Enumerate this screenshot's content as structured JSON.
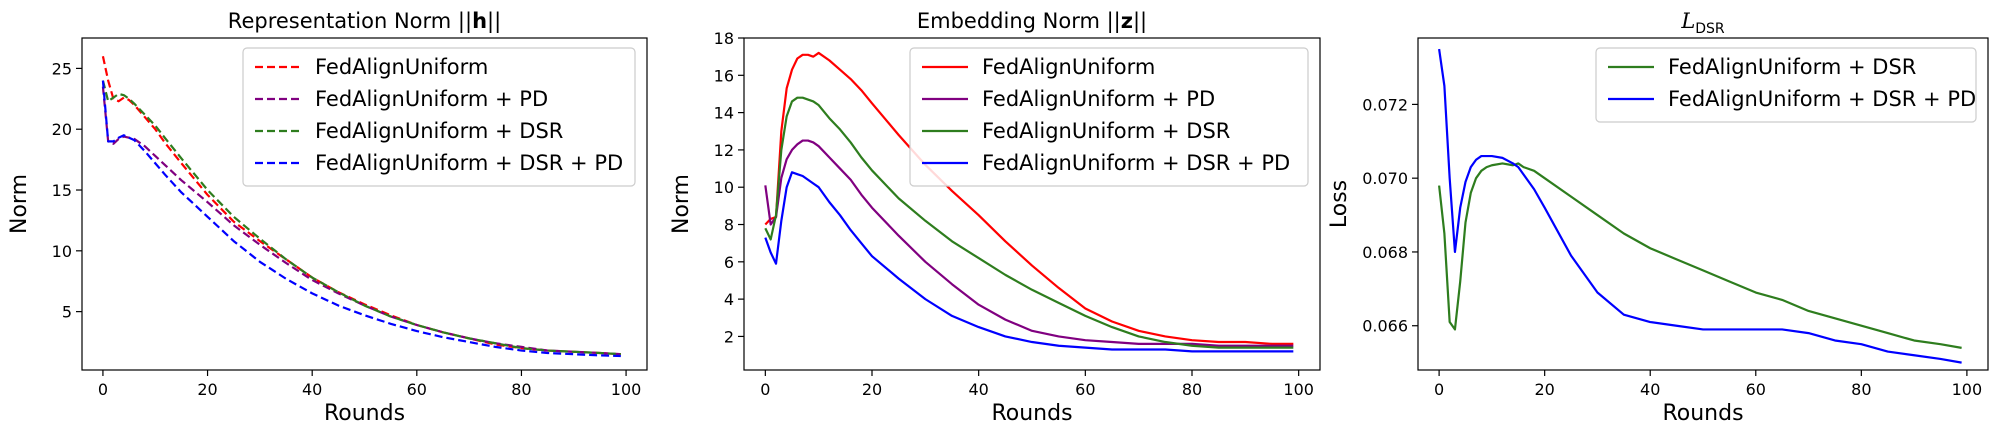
{
  "chart_data": [
    {
      "type": "line",
      "title": "Representation Norm ||h||",
      "title_parts": {
        "prefix": "Representation Norm ||",
        "bold": "h",
        "suffix": "||"
      },
      "xlabel": "Rounds",
      "ylabel": "Norm",
      "xlim": [
        -4,
        104
      ],
      "ylim": [
        0.2,
        27.5
      ],
      "xticks": [
        0,
        20,
        40,
        60,
        80,
        100
      ],
      "yticks": [
        5,
        10,
        15,
        20,
        25
      ],
      "grid": false,
      "legend_position": "top-right",
      "line_style": "dashed",
      "series": [
        {
          "name": "FedAlignUniform",
          "color": "#ff0000",
          "x": [
            0,
            1,
            2,
            3,
            4,
            5,
            6,
            8,
            10,
            12,
            15,
            20,
            25,
            30,
            35,
            40,
            45,
            50,
            55,
            60,
            65,
            70,
            75,
            80,
            85,
            90,
            95,
            99
          ],
          "y": [
            26.0,
            24.0,
            22.5,
            22.3,
            22.6,
            22.4,
            22.0,
            21.0,
            20.0,
            18.8,
            17.2,
            14.6,
            12.4,
            10.8,
            9.3,
            7.8,
            6.6,
            5.6,
            4.7,
            3.9,
            3.3,
            2.8,
            2.3,
            2.0,
            1.8,
            1.7,
            1.6,
            1.5
          ]
        },
        {
          "name": "FedAlignUniform + PD",
          "color": "#800080",
          "x": [
            0,
            1,
            2,
            3,
            4,
            5,
            6,
            8,
            10,
            12,
            15,
            20,
            25,
            30,
            35,
            40,
            45,
            50,
            55,
            60,
            65,
            70,
            75,
            80,
            85,
            90,
            95,
            99
          ],
          "y": [
            23.5,
            19.0,
            18.8,
            19.2,
            19.4,
            19.3,
            19.2,
            18.6,
            17.8,
            17.0,
            15.8,
            14.0,
            12.1,
            10.5,
            9.0,
            7.6,
            6.5,
            5.5,
            4.6,
            3.9,
            3.3,
            2.8,
            2.4,
            2.1,
            1.8,
            1.7,
            1.6,
            1.5
          ]
        },
        {
          "name": "FedAlignUniform + DSR",
          "color": "#2e7d1e",
          "x": [
            0,
            1,
            2,
            3,
            4,
            5,
            6,
            8,
            10,
            12,
            15,
            20,
            25,
            30,
            35,
            40,
            45,
            50,
            55,
            60,
            65,
            70,
            75,
            80,
            85,
            90,
            95,
            99
          ],
          "y": [
            24.0,
            22.3,
            22.6,
            22.9,
            22.8,
            22.5,
            22.1,
            21.2,
            20.3,
            19.2,
            17.6,
            15.0,
            12.8,
            11.0,
            9.3,
            7.8,
            6.6,
            5.5,
            4.6,
            3.9,
            3.3,
            2.8,
            2.4,
            2.0,
            1.8,
            1.7,
            1.6,
            1.5
          ]
        },
        {
          "name": "FedAlignUniform + DSR + PD",
          "color": "#0000ff",
          "x": [
            0,
            1,
            2,
            3,
            4,
            5,
            6,
            8,
            10,
            12,
            15,
            20,
            25,
            30,
            35,
            40,
            45,
            50,
            55,
            60,
            65,
            70,
            75,
            80,
            85,
            90,
            95,
            99
          ],
          "y": [
            24.0,
            19.0,
            19.0,
            19.3,
            19.5,
            19.3,
            19.1,
            18.2,
            17.2,
            16.2,
            14.8,
            12.8,
            10.8,
            9.1,
            7.7,
            6.5,
            5.5,
            4.7,
            4.0,
            3.4,
            2.9,
            2.5,
            2.1,
            1.8,
            1.6,
            1.5,
            1.4,
            1.35
          ]
        }
      ]
    },
    {
      "type": "line",
      "title": "Embedding Norm ||z||",
      "title_parts": {
        "prefix": "Embedding Norm ||",
        "bold": "z",
        "suffix": "||"
      },
      "xlabel": "Rounds",
      "ylabel": "Norm",
      "xlim": [
        -4,
        104
      ],
      "ylim": [
        0.2,
        18.0
      ],
      "xticks": [
        0,
        20,
        40,
        60,
        80,
        100
      ],
      "yticks": [
        2,
        4,
        6,
        8,
        10,
        12,
        14,
        16,
        18
      ],
      "grid": false,
      "legend_position": "top-right",
      "line_style": "solid",
      "series": [
        {
          "name": "FedAlignUniform",
          "color": "#ff0000",
          "x": [
            0,
            1,
            2,
            3,
            4,
            5,
            6,
            7,
            8,
            9,
            10,
            12,
            14,
            16,
            18,
            20,
            25,
            30,
            35,
            40,
            45,
            50,
            55,
            60,
            65,
            70,
            75,
            80,
            85,
            90,
            95,
            99
          ],
          "y": [
            8.0,
            8.3,
            8.4,
            13.0,
            15.3,
            16.3,
            16.9,
            17.1,
            17.1,
            17.0,
            17.2,
            16.8,
            16.3,
            15.8,
            15.2,
            14.5,
            12.8,
            11.2,
            9.8,
            8.5,
            7.1,
            5.8,
            4.6,
            3.5,
            2.8,
            2.3,
            2.0,
            1.8,
            1.7,
            1.7,
            1.6,
            1.6
          ]
        },
        {
          "name": "FedAlignUniform + PD",
          "color": "#800080",
          "x": [
            0,
            1,
            2,
            3,
            4,
            5,
            6,
            7,
            8,
            9,
            10,
            12,
            14,
            16,
            18,
            20,
            25,
            30,
            35,
            40,
            45,
            50,
            55,
            60,
            65,
            70,
            75,
            80,
            85,
            90,
            95,
            99
          ],
          "y": [
            10.1,
            8.0,
            8.4,
            10.5,
            11.5,
            12.0,
            12.3,
            12.5,
            12.5,
            12.4,
            12.2,
            11.6,
            11.0,
            10.4,
            9.6,
            8.9,
            7.4,
            6.0,
            4.8,
            3.7,
            2.9,
            2.3,
            2.0,
            1.8,
            1.7,
            1.6,
            1.6,
            1.6,
            1.5,
            1.5,
            1.5,
            1.5
          ]
        },
        {
          "name": "FedAlignUniform + DSR",
          "color": "#2e7d1e",
          "x": [
            0,
            1,
            2,
            3,
            4,
            5,
            6,
            7,
            8,
            9,
            10,
            12,
            14,
            16,
            18,
            20,
            25,
            30,
            35,
            40,
            45,
            50,
            55,
            60,
            65,
            70,
            75,
            80,
            85,
            90,
            95,
            99
          ],
          "y": [
            7.8,
            7.2,
            8.5,
            12.0,
            13.8,
            14.6,
            14.8,
            14.8,
            14.7,
            14.6,
            14.4,
            13.7,
            13.1,
            12.4,
            11.6,
            10.9,
            9.4,
            8.2,
            7.1,
            6.2,
            5.3,
            4.5,
            3.8,
            3.1,
            2.5,
            2.0,
            1.7,
            1.5,
            1.4,
            1.4,
            1.4,
            1.4
          ]
        },
        {
          "name": "FedAlignUniform + DSR + PD",
          "color": "#0000ff",
          "x": [
            0,
            1,
            2,
            3,
            4,
            5,
            6,
            7,
            8,
            9,
            10,
            12,
            14,
            16,
            18,
            20,
            25,
            30,
            35,
            40,
            45,
            50,
            55,
            60,
            65,
            70,
            75,
            80,
            85,
            90,
            95,
            99
          ],
          "y": [
            7.3,
            6.5,
            5.9,
            8.2,
            10.0,
            10.8,
            10.7,
            10.6,
            10.4,
            10.2,
            10.0,
            9.2,
            8.5,
            7.7,
            7.0,
            6.3,
            5.1,
            4.0,
            3.1,
            2.5,
            2.0,
            1.7,
            1.5,
            1.4,
            1.3,
            1.3,
            1.3,
            1.2,
            1.2,
            1.2,
            1.2,
            1.2
          ]
        }
      ]
    },
    {
      "type": "line",
      "title": "L_DSR",
      "title_parts": {
        "script": "L",
        "subscript": "DSR"
      },
      "xlabel": "Rounds",
      "ylabel": "Loss",
      "xlim": [
        -4,
        104
      ],
      "ylim": [
        0.0648,
        0.0738
      ],
      "xticks": [
        0,
        20,
        40,
        60,
        80,
        100
      ],
      "yticks": [
        0.066,
        0.068,
        0.07,
        0.072
      ],
      "grid": false,
      "legend_position": "top-right",
      "line_style": "solid",
      "series": [
        {
          "name": "FedAlignUniform + DSR",
          "color": "#2e7d1e",
          "x": [
            0,
            1,
            2,
            3,
            4,
            5,
            6,
            7,
            8,
            9,
            10,
            12,
            14,
            15,
            16,
            18,
            20,
            25,
            30,
            35,
            40,
            45,
            50,
            55,
            60,
            65,
            70,
            75,
            80,
            85,
            90,
            95,
            99
          ],
          "y": [
            0.0698,
            0.0685,
            0.0661,
            0.0659,
            0.0672,
            0.0688,
            0.0696,
            0.07,
            0.0702,
            0.0703,
            0.07035,
            0.0704,
            0.07035,
            0.0704,
            0.0703,
            0.0702,
            0.07,
            0.0695,
            0.069,
            0.0685,
            0.0681,
            0.0678,
            0.0675,
            0.0672,
            0.0669,
            0.0667,
            0.0664,
            0.0662,
            0.066,
            0.0658,
            0.0656,
            0.0655,
            0.0654
          ]
        },
        {
          "name": "FedAlignUniform + DSR + PD",
          "color": "#0000ff",
          "x": [
            0,
            1,
            2,
            3,
            4,
            5,
            6,
            7,
            8,
            9,
            10,
            12,
            14,
            15,
            16,
            18,
            20,
            25,
            30,
            35,
            40,
            45,
            50,
            55,
            60,
            65,
            70,
            75,
            80,
            85,
            90,
            95,
            99
          ],
          "y": [
            0.0735,
            0.0725,
            0.07,
            0.068,
            0.0692,
            0.0699,
            0.0703,
            0.0705,
            0.0706,
            0.0706,
            0.0706,
            0.07055,
            0.0704,
            0.0703,
            0.0701,
            0.0697,
            0.0692,
            0.0679,
            0.0669,
            0.0663,
            0.0661,
            0.066,
            0.0659,
            0.0659,
            0.0659,
            0.0659,
            0.0658,
            0.0656,
            0.0655,
            0.0653,
            0.0652,
            0.0651,
            0.065
          ]
        }
      ]
    }
  ]
}
